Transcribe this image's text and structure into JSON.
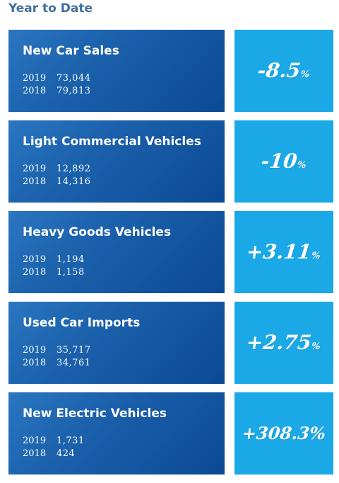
{
  "header": {
    "title": "Year to Date"
  },
  "stats": [
    {
      "title": "New Car Sales",
      "rows": [
        {
          "year": "2019",
          "value": "73,044"
        },
        {
          "year": "2018",
          "value": "79,813"
        }
      ],
      "change": "-8.5",
      "change_unit": "%"
    },
    {
      "title": "Light Commercial Vehicles",
      "rows": [
        {
          "year": "2019",
          "value": "12,892"
        },
        {
          "year": "2018",
          "value": "14,316"
        }
      ],
      "change": "-10",
      "change_unit": "%"
    },
    {
      "title": "Heavy Goods Vehicles",
      "rows": [
        {
          "year": "2019",
          "value": "1,194"
        },
        {
          "year": "2018",
          "value": "1,158"
        }
      ],
      "change": "+3.11",
      "change_unit": "%"
    },
    {
      "title": "Used Car Imports",
      "rows": [
        {
          "year": "2019",
          "value": "35,717"
        },
        {
          "year": "2018",
          "value": "34,761"
        }
      ],
      "change": "+2.75",
      "change_unit": "%"
    },
    {
      "title": "New Electric Vehicles",
      "rows": [
        {
          "year": "2019",
          "value": "1,731"
        },
        {
          "year": "2018",
          "value": "424"
        }
      ],
      "change": "+308.3",
      "change_unit": "%"
    }
  ],
  "colors": {
    "header_text": "#3f6fa0",
    "label_box": "#1c62ad",
    "change_box": "#1ba8e6",
    "text": "#ffffff"
  }
}
